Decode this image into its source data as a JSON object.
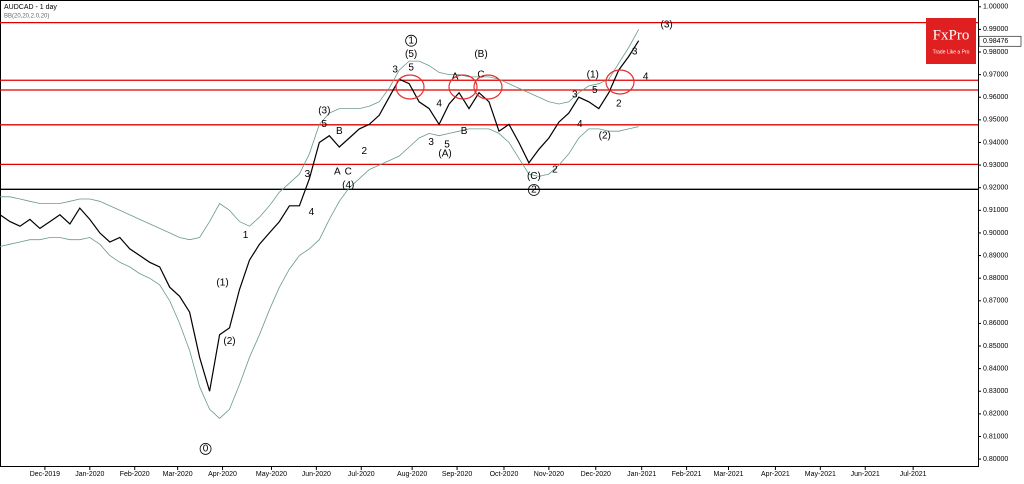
{
  "chart_data": {
    "type": "line",
    "title": "AUDCAD - 1 day",
    "subtitle": "BB(20,20,2.0,20)",
    "brand": "FxPro",
    "tagline": "Trade Like a Pro",
    "last_price": {
      "value": 0.98476,
      "label": "0.98476"
    },
    "x": [
      0,
      1,
      2,
      3,
      4,
      5,
      6,
      7,
      8,
      9,
      10,
      11,
      12,
      13,
      14,
      15,
      16,
      17,
      18,
      19,
      20,
      21,
      22,
      23,
      24,
      25,
      26,
      27,
      28,
      29,
      30,
      31,
      32,
      33,
      34,
      35,
      36,
      37,
      38,
      39,
      40,
      41,
      42,
      43,
      44,
      45,
      46,
      47,
      48,
      49,
      50,
      51,
      52,
      53,
      54,
      55,
      56,
      57,
      58,
      59,
      60,
      61,
      62,
      63,
      64
    ],
    "series": [
      {
        "name": "AUDCAD",
        "color": "#000000",
        "values": [
          0.908,
          0.905,
          0.903,
          0.906,
          0.902,
          0.905,
          0.908,
          0.904,
          0.911,
          0.906,
          0.9,
          0.896,
          0.898,
          0.893,
          0.89,
          0.887,
          0.885,
          0.876,
          0.872,
          0.865,
          0.845,
          0.83,
          0.855,
          0.858,
          0.875,
          0.888,
          0.895,
          0.9,
          0.905,
          0.912,
          0.912,
          0.924,
          0.94,
          0.943,
          0.938,
          0.942,
          0.946,
          0.948,
          0.952,
          0.96,
          0.968,
          0.966,
          0.958,
          0.955,
          0.948,
          0.957,
          0.962,
          0.955,
          0.962,
          0.958,
          0.945,
          0.948,
          0.94,
          0.931,
          0.937,
          0.942,
          0.949,
          0.953,
          0.96,
          0.958,
          0.955,
          0.962,
          0.972,
          0.978,
          0.985
        ]
      },
      {
        "name": "BB upper",
        "color": "#6a9a8a",
        "values": [
          0.916,
          0.916,
          0.915,
          0.914,
          0.913,
          0.913,
          0.913,
          0.914,
          0.915,
          0.915,
          0.914,
          0.912,
          0.91,
          0.908,
          0.906,
          0.904,
          0.902,
          0.9,
          0.898,
          0.897,
          0.898,
          0.905,
          0.913,
          0.91,
          0.905,
          0.903,
          0.907,
          0.912,
          0.918,
          0.922,
          0.926,
          0.935,
          0.948,
          0.953,
          0.955,
          0.955,
          0.955,
          0.956,
          0.958,
          0.964,
          0.972,
          0.976,
          0.976,
          0.974,
          0.971,
          0.97,
          0.97,
          0.969,
          0.969,
          0.969,
          0.968,
          0.966,
          0.964,
          0.962,
          0.96,
          0.958,
          0.957,
          0.958,
          0.962,
          0.965,
          0.966,
          0.968,
          0.975,
          0.982,
          0.99
        ]
      },
      {
        "name": "BB lower",
        "color": "#6a9a8a",
        "values": [
          0.894,
          0.895,
          0.896,
          0.897,
          0.897,
          0.898,
          0.898,
          0.897,
          0.897,
          0.898,
          0.895,
          0.89,
          0.887,
          0.885,
          0.882,
          0.88,
          0.877,
          0.87,
          0.86,
          0.848,
          0.832,
          0.822,
          0.818,
          0.822,
          0.833,
          0.845,
          0.855,
          0.866,
          0.876,
          0.884,
          0.89,
          0.893,
          0.897,
          0.906,
          0.914,
          0.92,
          0.924,
          0.928,
          0.93,
          0.932,
          0.934,
          0.938,
          0.942,
          0.944,
          0.943,
          0.944,
          0.945,
          0.946,
          0.946,
          0.946,
          0.944,
          0.94,
          0.933,
          0.926,
          0.925,
          0.926,
          0.93,
          0.935,
          0.942,
          0.946,
          0.946,
          0.945,
          0.945,
          0.946,
          0.947
        ]
      }
    ],
    "levels": [
      {
        "value": 0.993,
        "color": "#e00000"
      },
      {
        "value": 0.9675,
        "color": "#e00000"
      },
      {
        "value": 0.9632,
        "color": "#e00000"
      },
      {
        "value": 0.9478,
        "color": "#e00000"
      },
      {
        "value": 0.9303,
        "color": "#e00000"
      },
      {
        "value": 0.9193,
        "color": "#000000"
      }
    ],
    "annotations": [
      {
        "text": "0",
        "x": 20.6,
        "y": 0.8045,
        "circled": true
      },
      {
        "text": "(1)",
        "x": 22.3,
        "y": 0.878,
        "circled": false
      },
      {
        "text": "(2)",
        "x": 23.0,
        "y": 0.852,
        "circled": false
      },
      {
        "text": "1",
        "x": 24.6,
        "y": 0.899,
        "circled": false
      },
      {
        "text": "3",
        "x": 30.8,
        "y": 0.926,
        "circled": false
      },
      {
        "text": "4",
        "x": 31.2,
        "y": 0.909,
        "circled": false
      },
      {
        "text": "(3)",
        "x": 32.5,
        "y": 0.954,
        "circled": false
      },
      {
        "text": "5",
        "x": 32.5,
        "y": 0.948,
        "circled": false
      },
      {
        "text": "B",
        "x": 34.0,
        "y": 0.945,
        "circled": false
      },
      {
        "text": "A",
        "x": 33.8,
        "y": 0.927,
        "circled": false
      },
      {
        "text": "C",
        "x": 34.9,
        "y": 0.927,
        "circled": false
      },
      {
        "text": "(4)",
        "x": 34.9,
        "y": 0.921,
        "circled": false
      },
      {
        "text": "2",
        "x": 36.5,
        "y": 0.936,
        "circled": false
      },
      {
        "text": "3",
        "x": 39.6,
        "y": 0.972,
        "circled": false
      },
      {
        "text": "5",
        "x": 41.2,
        "y": 0.973,
        "circled": false
      },
      {
        "text": "(5)",
        "x": 41.2,
        "y": 0.979,
        "circled": false
      },
      {
        "text": "1",
        "x": 41.2,
        "y": 0.985,
        "circled": true
      },
      {
        "text": "4",
        "x": 44.0,
        "y": 0.957,
        "circled": false
      },
      {
        "text": "3",
        "x": 43.2,
        "y": 0.94,
        "circled": false
      },
      {
        "text": "5",
        "x": 44.8,
        "y": 0.939,
        "circled": false
      },
      {
        "text": "(A)",
        "x": 44.6,
        "y": 0.935,
        "circled": false
      },
      {
        "text": "A",
        "x": 45.6,
        "y": 0.969,
        "circled": false
      },
      {
        "text": "B",
        "x": 46.5,
        "y": 0.945,
        "circled": false
      },
      {
        "text": "(B)",
        "x": 48.2,
        "y": 0.979,
        "circled": false
      },
      {
        "text": "C",
        "x": 48.2,
        "y": 0.97,
        "circled": false
      },
      {
        "text": "(C)",
        "x": 53.5,
        "y": 0.925,
        "circled": false
      },
      {
        "text": "2",
        "x": 53.5,
        "y": 0.919,
        "circled": true
      },
      {
        "text": "2",
        "x": 55.6,
        "y": 0.928,
        "circled": false
      },
      {
        "text": "3",
        "x": 57.6,
        "y": 0.961,
        "circled": false
      },
      {
        "text": "4",
        "x": 58.1,
        "y": 0.948,
        "circled": false
      },
      {
        "text": "5",
        "x": 59.6,
        "y": 0.963,
        "circled": false
      },
      {
        "text": "(1)",
        "x": 59.4,
        "y": 0.97,
        "circled": false
      },
      {
        "text": "(2)",
        "x": 60.6,
        "y": 0.943,
        "circled": false
      },
      {
        "text": "2",
        "x": 62.0,
        "y": 0.957,
        "circled": false
      },
      {
        "text": "4",
        "x": 64.7,
        "y": 0.969,
        "circled": false
      },
      {
        "text": "3",
        "x": 63.6,
        "y": 0.98,
        "circled": false
      },
      {
        "text": "(3)",
        "x": 66.8,
        "y": 0.992,
        "circled": false
      }
    ],
    "xlim": [
      0,
      98
    ],
    "ylim": [
      0.7965,
      1.003
    ],
    "xticks": [
      {
        "value": 4.5,
        "label": "Dec-2019"
      },
      {
        "value": 9,
        "label": "Jan-2020"
      },
      {
        "value": 13.5,
        "label": "Feb-2020"
      },
      {
        "value": 17.8,
        "label": "Mar-2020"
      },
      {
        "value": 22.3,
        "label": "Apr-2020"
      },
      {
        "value": 27.2,
        "label": "May-2020"
      },
      {
        "value": 31.7,
        "label": "Jun-2020"
      },
      {
        "value": 36.2,
        "label": "Jul-2020"
      },
      {
        "value": 41.3,
        "label": "Aug-2020"
      },
      {
        "value": 45.8,
        "label": "Sep-2020"
      },
      {
        "value": 50.5,
        "label": "Oct-2020"
      },
      {
        "value": 55,
        "label": "Nov-2020"
      },
      {
        "value": 59.7,
        "label": "Dec-2020"
      },
      {
        "value": 64.3,
        "label": "Jan-2021"
      },
      {
        "value": 68.8,
        "label": "Feb-2021"
      },
      {
        "value": 73,
        "label": "Mar-2021"
      },
      {
        "value": 77.7,
        "label": "Apr-2021"
      },
      {
        "value": 82.2,
        "label": "May-2021"
      },
      {
        "value": 86.7,
        "label": "Jun-2021"
      },
      {
        "value": 91.5,
        "label": "Jul-2021"
      }
    ],
    "yticks": [
      {
        "value": 0.8,
        "label": "0.80000"
      },
      {
        "value": 0.81,
        "label": "0.81000"
      },
      {
        "value": 0.82,
        "label": "0.82000"
      },
      {
        "value": 0.83,
        "label": "0.83000"
      },
      {
        "value": 0.84,
        "label": "0.84000"
      },
      {
        "value": 0.85,
        "label": "0.85000"
      },
      {
        "value": 0.86,
        "label": "0.86000"
      },
      {
        "value": 0.87,
        "label": "0.87000"
      },
      {
        "value": 0.88,
        "label": "0.88000"
      },
      {
        "value": 0.89,
        "label": "0.89000"
      },
      {
        "value": 0.9,
        "label": "0.90000"
      },
      {
        "value": 0.91,
        "label": "0.91000"
      },
      {
        "value": 0.92,
        "label": "0.92000"
      },
      {
        "value": 0.93,
        "label": "0.93000"
      },
      {
        "value": 0.94,
        "label": "0.94000"
      },
      {
        "value": 0.95,
        "label": "0.95000"
      },
      {
        "value": 0.96,
        "label": "0.96000"
      },
      {
        "value": 0.97,
        "label": "0.97000"
      },
      {
        "value": 0.98,
        "label": "0.98000"
      },
      {
        "value": 0.99,
        "label": "0.99000"
      },
      {
        "value": 1.0,
        "label": "1.00000"
      }
    ],
    "grid": false
  }
}
